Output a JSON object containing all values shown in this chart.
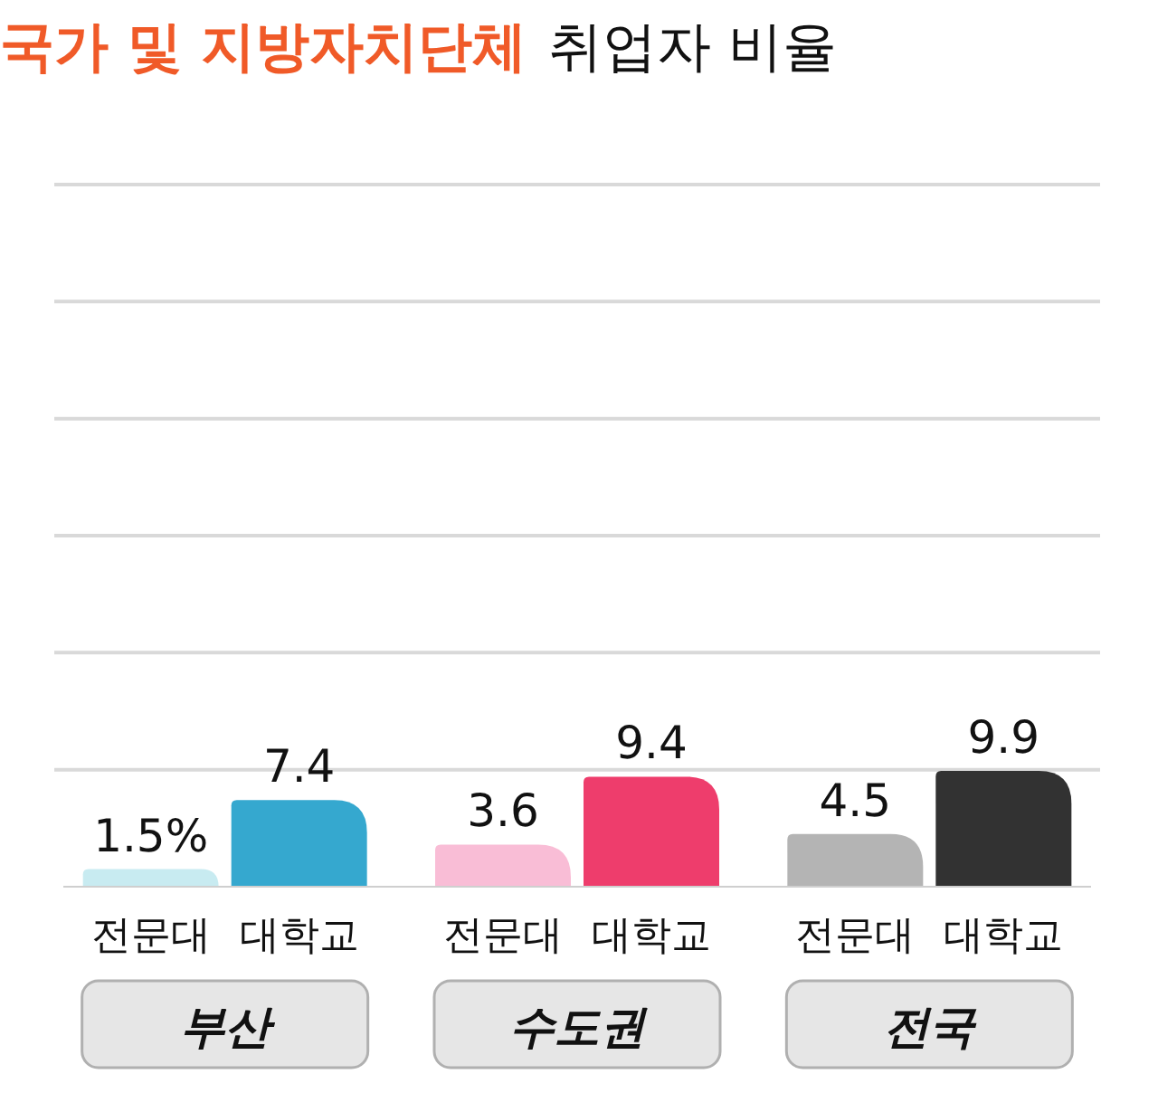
{
  "chart_data": {
    "type": "bar",
    "title": "국가 및 지방자치단체",
    "subtitle": "취업자 비율",
    "categories": [
      "전문대",
      "대학교",
      "전문대",
      "대학교",
      "전문대",
      "대학교"
    ],
    "values": [
      1.5,
      7.4,
      3.6,
      9.4,
      4.5,
      9.9
    ],
    "value_labels": [
      "1.5%",
      "7.4",
      "3.6",
      "9.4",
      "4.5",
      "9.9"
    ],
    "colors": [
      "#c8ebf1",
      "#35a8cf",
      "#f9bdd6",
      "#ee3d6c",
      "#b4b4b4",
      "#323232"
    ],
    "annotations": [
      "부산",
      "수도권",
      "전국"
    ],
    "ylim": [
      0,
      60
    ],
    "yticks": [
      {
        "value": 10,
        "label": null
      },
      {
        "value": 20,
        "label": null
      },
      {
        "value": 30,
        "label": null
      },
      {
        "value": 40,
        "label": null
      },
      {
        "value": 50,
        "label": null
      },
      {
        "value": 60,
        "label": null
      }
    ],
    "grid": "y"
  }
}
